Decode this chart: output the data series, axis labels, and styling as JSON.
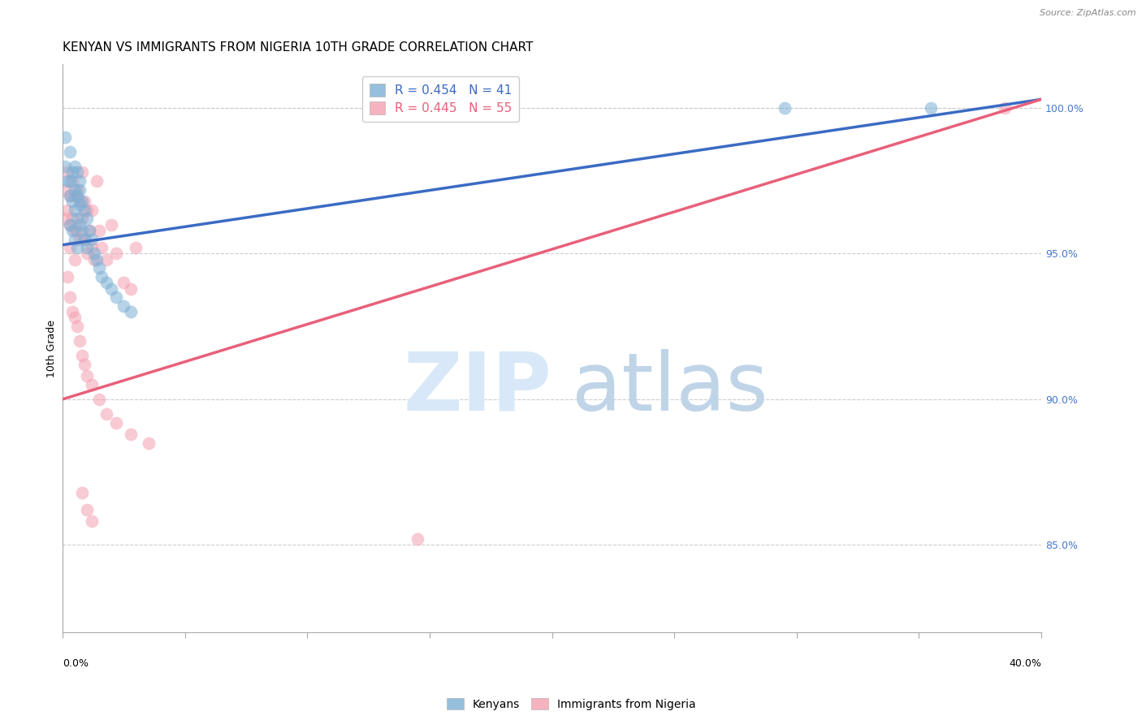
{
  "title": "KENYAN VS IMMIGRANTS FROM NIGERIA 10TH GRADE CORRELATION CHART",
  "source": "Source: ZipAtlas.com",
  "ylabel": "10th Grade",
  "ylabel_right_ticks": [
    "100.0%",
    "95.0%",
    "90.0%",
    "85.0%"
  ],
  "ylabel_right_vals": [
    1.0,
    0.95,
    0.9,
    0.85
  ],
  "xmin": 0.0,
  "xmax": 0.4,
  "ymin": 0.82,
  "ymax": 1.015,
  "legend_blue_R": "0.454",
  "legend_blue_N": "41",
  "legend_pink_R": "0.445",
  "legend_pink_N": "55",
  "blue_scatter_x": [
    0.001,
    0.001,
    0.002,
    0.003,
    0.003,
    0.003,
    0.004,
    0.004,
    0.005,
    0.005,
    0.005,
    0.006,
    0.006,
    0.006,
    0.007,
    0.007,
    0.007,
    0.007,
    0.008,
    0.008,
    0.009,
    0.009,
    0.01,
    0.01,
    0.011,
    0.012,
    0.013,
    0.014,
    0.015,
    0.016,
    0.018,
    0.02,
    0.022,
    0.025,
    0.028,
    0.003,
    0.004,
    0.005,
    0.006,
    0.295,
    0.355
  ],
  "blue_scatter_y": [
    0.98,
    0.99,
    0.975,
    0.985,
    0.975,
    0.97,
    0.978,
    0.968,
    0.98,
    0.972,
    0.965,
    0.978,
    0.97,
    0.962,
    0.975,
    0.967,
    0.96,
    0.972,
    0.968,
    0.958,
    0.965,
    0.955,
    0.962,
    0.952,
    0.958,
    0.955,
    0.95,
    0.948,
    0.945,
    0.942,
    0.94,
    0.938,
    0.935,
    0.932,
    0.93,
    0.96,
    0.958,
    0.955,
    0.952,
    1.0,
    1.0
  ],
  "pink_scatter_x": [
    0.001,
    0.001,
    0.002,
    0.002,
    0.003,
    0.003,
    0.003,
    0.004,
    0.004,
    0.005,
    0.005,
    0.005,
    0.006,
    0.006,
    0.007,
    0.007,
    0.008,
    0.008,
    0.009,
    0.009,
    0.01,
    0.01,
    0.011,
    0.012,
    0.012,
    0.013,
    0.014,
    0.015,
    0.016,
    0.018,
    0.02,
    0.022,
    0.025,
    0.028,
    0.03,
    0.002,
    0.003,
    0.004,
    0.005,
    0.006,
    0.007,
    0.008,
    0.009,
    0.01,
    0.012,
    0.015,
    0.018,
    0.022,
    0.028,
    0.035,
    0.008,
    0.01,
    0.012,
    0.145,
    0.385
  ],
  "pink_scatter_y": [
    0.972,
    0.962,
    0.978,
    0.965,
    0.97,
    0.96,
    0.952,
    0.975,
    0.962,
    0.97,
    0.958,
    0.948,
    0.972,
    0.958,
    0.968,
    0.955,
    0.978,
    0.962,
    0.968,
    0.955,
    0.965,
    0.95,
    0.958,
    0.965,
    0.952,
    0.948,
    0.975,
    0.958,
    0.952,
    0.948,
    0.96,
    0.95,
    0.94,
    0.938,
    0.952,
    0.942,
    0.935,
    0.93,
    0.928,
    0.925,
    0.92,
    0.915,
    0.912,
    0.908,
    0.905,
    0.9,
    0.895,
    0.892,
    0.888,
    0.885,
    0.868,
    0.862,
    0.858,
    0.852,
    1.0
  ],
  "blue_color": "#7BAFD4",
  "pink_color": "#F4A0B0",
  "blue_line_color": "#3A6BC4",
  "pink_line_color": "#E8607A",
  "grid_color": "#CCCCCC",
  "background_color": "#FFFFFF",
  "right_axis_color": "#4477CC",
  "title_fontsize": 11,
  "axis_label_fontsize": 9,
  "tick_fontsize": 9,
  "blue_regression_x0": 0.0,
  "blue_regression_y0": 0.953,
  "blue_regression_x1": 0.4,
  "blue_regression_y1": 1.003,
  "pink_regression_x0": 0.0,
  "pink_regression_y0": 0.9,
  "pink_regression_x1": 0.4,
  "pink_regression_y1": 1.003
}
